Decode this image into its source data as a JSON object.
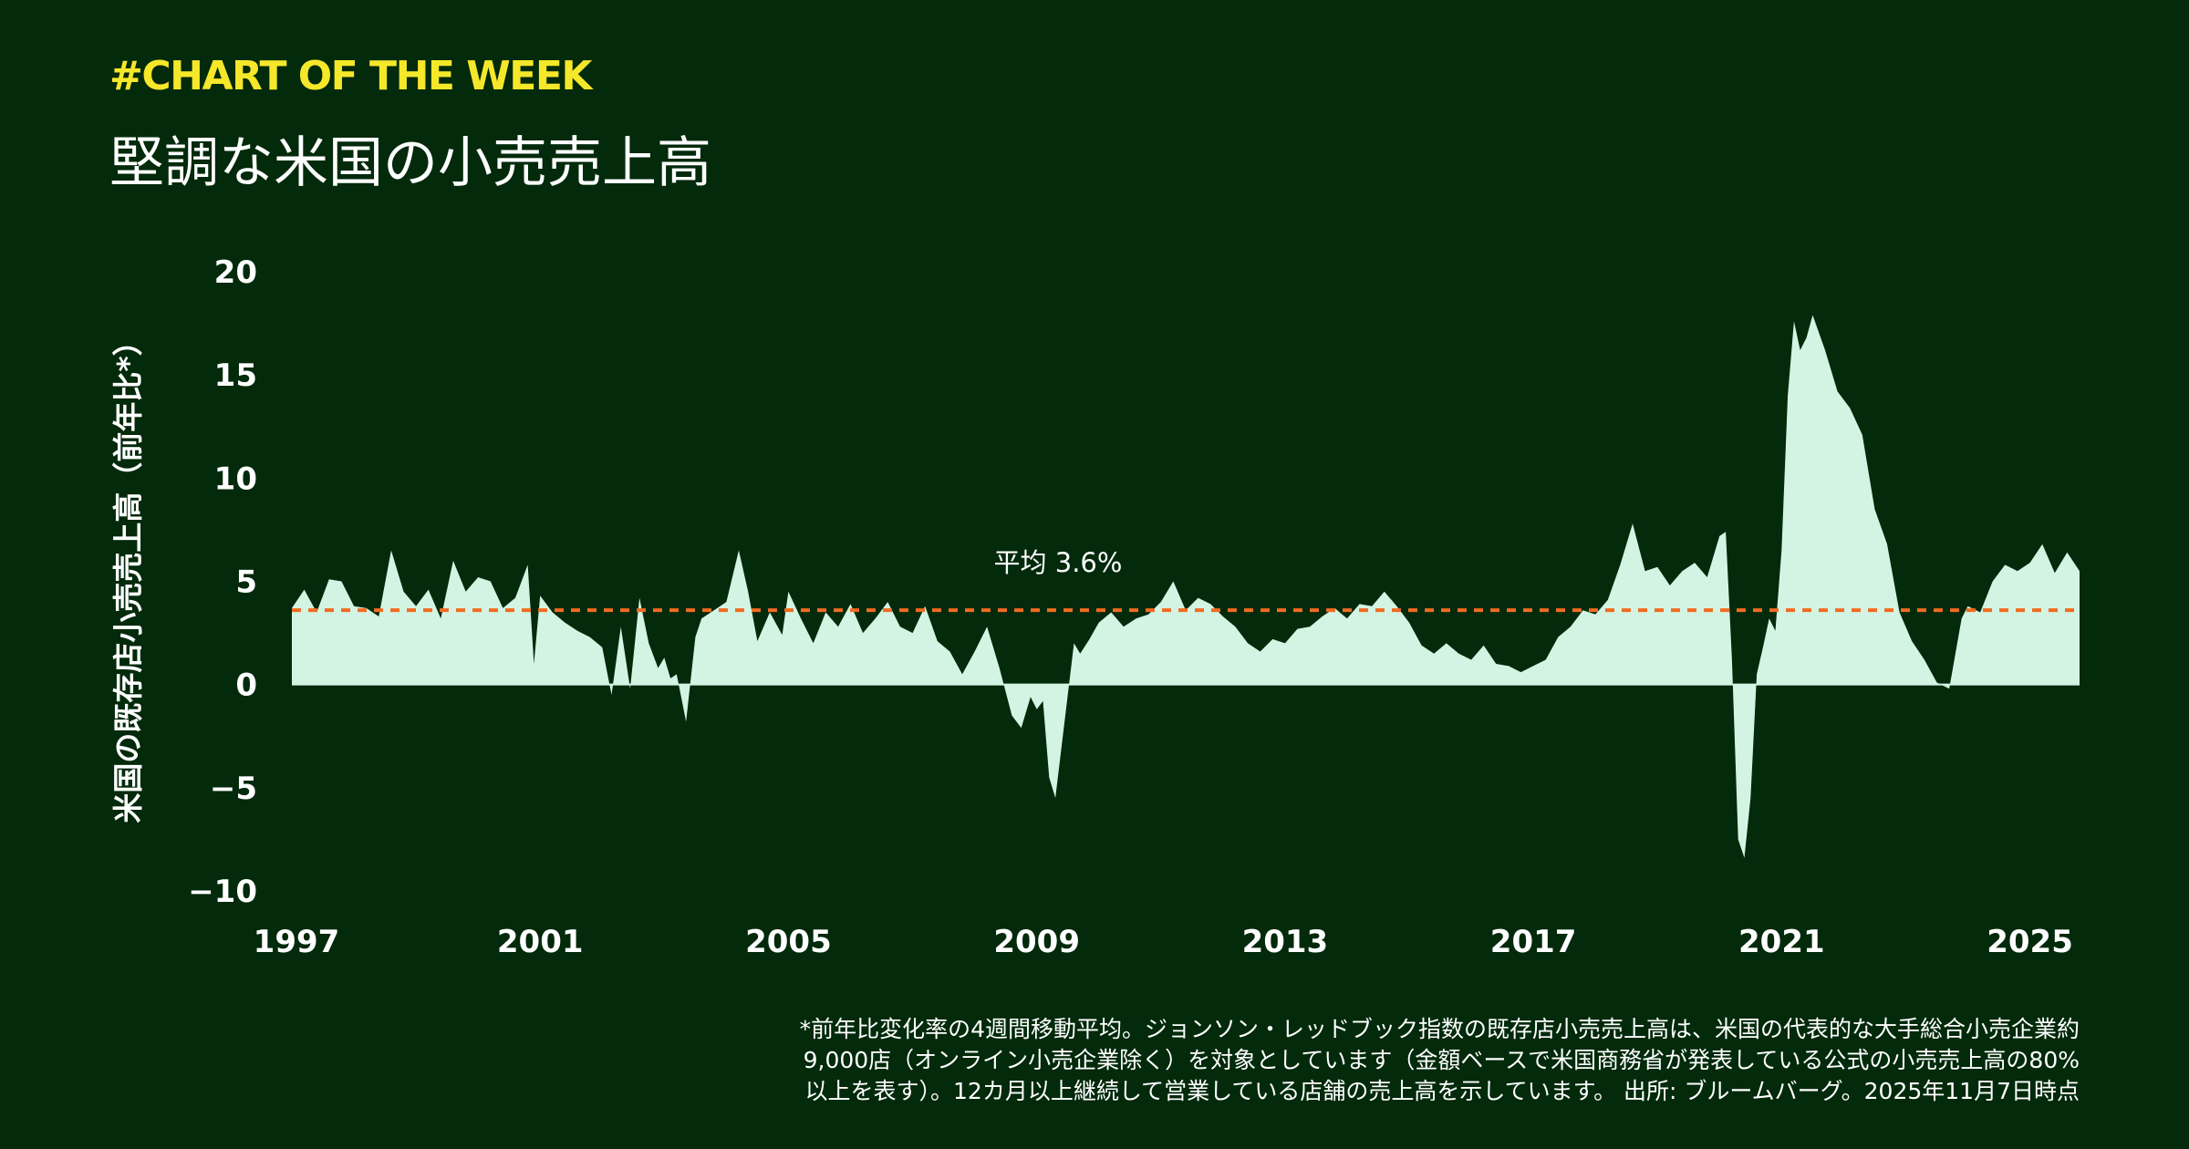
{
  "header": {
    "tag": "#CHART OF THE WEEK",
    "title": "堅調な米国の小売売上高"
  },
  "colors": {
    "background": "#022a0b",
    "area_fill": "#d4f4e3",
    "average_line": "#f26b21",
    "tag": "#f5e72a",
    "text": "#ffffff"
  },
  "footnote": {
    "line1": "*前年比変化率の4週間移動平均。ジョンソン・レッドブック指数の既存店小売売上高は、米国の代表的な大手総合小売企業約",
    "line2": "9,000店（オンライン小売企業除く）を対象としています（金額ベースで米国商務省が発表している公式の小売売上高の80%",
    "line3": "以上を表す）。12カ月以上継続して営業している店舗の売上高を示しています。 出所: ブルームバーグ。2025年11月7日時点"
  },
  "chart_data": {
    "type": "area",
    "title": "堅調な米国の小売売上高",
    "xlabel": "",
    "ylabel": "米国の既存店小売売上高（前年比*）",
    "xlim": [
      1997,
      2025.8
    ],
    "ylim": [
      -10,
      20
    ],
    "yticks": [
      20,
      15,
      10,
      5,
      0,
      -5,
      -10
    ],
    "ytick_labels": [
      "20",
      "15",
      "10",
      "5",
      "0",
      "−5",
      "−10"
    ],
    "xticks": [
      1997,
      2001,
      2005,
      2009,
      2013,
      2017,
      2021,
      2025
    ],
    "xtick_labels": [
      "1997",
      "2001",
      "2005",
      "2009",
      "2013",
      "2017",
      "2021",
      "2025"
    ],
    "grid": false,
    "legend": "none",
    "average": {
      "value": 3.6,
      "label": "平均 3.6%"
    },
    "series": [
      {
        "x": [
          1997.0,
          1997.2,
          1997.4,
          1997.6,
          1997.8,
          1998.0,
          1998.2,
          1998.4,
          1998.6,
          1998.8,
          1999.0,
          1999.2,
          1999.4,
          1999.6,
          1999.8,
          2000.0,
          2000.2,
          2000.4,
          2000.6,
          2000.8,
          2000.9,
          2001.0,
          2001.2,
          2001.4,
          2001.6,
          2001.8,
          2002.0,
          2002.15,
          2002.3,
          2002.45,
          2002.6,
          2002.75,
          2002.9,
          2003.0,
          2003.1,
          2003.2,
          2003.35,
          2003.5,
          2003.6,
          2003.8,
          2004.0,
          2004.2,
          2004.35,
          2004.5,
          2004.7,
          2004.9,
          2005.0,
          2005.2,
          2005.4,
          2005.6,
          2005.8,
          2006.0,
          2006.2,
          2006.4,
          2006.6,
          2006.8,
          2007.0,
          2007.2,
          2007.4,
          2007.6,
          2007.8,
          2008.0,
          2008.2,
          2008.4,
          2008.6,
          2008.75,
          2008.9,
          2009.0,
          2009.1,
          2009.2,
          2009.3,
          2009.4,
          2009.5,
          2009.6,
          2009.7,
          2009.85,
          2010.0,
          2010.2,
          2010.4,
          2010.6,
          2010.8,
          2011.0,
          2011.2,
          2011.4,
          2011.6,
          2011.8,
          2012.0,
          2012.2,
          2012.4,
          2012.6,
          2012.8,
          2013.0,
          2013.2,
          2013.4,
          2013.6,
          2013.8,
          2014.0,
          2014.2,
          2014.4,
          2014.6,
          2014.8,
          2015.0,
          2015.2,
          2015.4,
          2015.6,
          2015.8,
          2016.0,
          2016.2,
          2016.4,
          2016.6,
          2016.8,
          2017.0,
          2017.2,
          2017.4,
          2017.6,
          2017.8,
          2018.0,
          2018.2,
          2018.4,
          2018.6,
          2018.8,
          2019.0,
          2019.2,
          2019.4,
          2019.6,
          2019.8,
          2020.0,
          2020.1,
          2020.2,
          2020.3,
          2020.4,
          2020.5,
          2020.6,
          2020.7,
          2020.8,
          2020.9,
          2021.0,
          2021.1,
          2021.2,
          2021.3,
          2021.4,
          2021.5,
          2021.7,
          2021.9,
          2022.1,
          2022.3,
          2022.5,
          2022.7,
          2022.9,
          2023.1,
          2023.3,
          2023.5,
          2023.7,
          2023.9,
          2024.0,
          2024.2,
          2024.4,
          2024.6,
          2024.8,
          2025.0,
          2025.2,
          2025.4,
          2025.6,
          2025.8
        ],
        "y": [
          3.7,
          4.6,
          3.5,
          5.1,
          5.0,
          3.8,
          3.7,
          3.3,
          6.5,
          4.5,
          3.8,
          4.6,
          3.2,
          6.0,
          4.5,
          5.2,
          5.0,
          3.7,
          4.2,
          5.8,
          1.0,
          4.3,
          3.5,
          3.0,
          2.6,
          2.3,
          1.8,
          -0.5,
          2.8,
          -0.2,
          4.2,
          2.0,
          0.8,
          1.3,
          0.3,
          0.5,
          -1.8,
          2.3,
          3.2,
          3.6,
          4.0,
          6.5,
          4.5,
          2.1,
          3.5,
          2.4,
          4.5,
          3.2,
          2.0,
          3.5,
          2.8,
          3.9,
          2.5,
          3.2,
          4.0,
          2.8,
          2.5,
          3.8,
          2.1,
          1.6,
          0.5,
          1.6,
          2.8,
          0.8,
          -1.5,
          -2.1,
          -0.6,
          -1.2,
          -0.8,
          -4.5,
          -5.5,
          -3.0,
          -0.5,
          2.0,
          1.5,
          2.2,
          3.0,
          3.5,
          2.8,
          3.2,
          3.4,
          4.0,
          5.0,
          3.6,
          4.2,
          3.9,
          3.3,
          2.8,
          2.0,
          1.6,
          2.2,
          2.0,
          2.7,
          2.8,
          3.3,
          3.7,
          3.2,
          3.9,
          3.8,
          4.5,
          3.8,
          3.0,
          1.9,
          1.5,
          2.0,
          1.5,
          1.2,
          1.9,
          1.0,
          0.9,
          0.6,
          0.9,
          1.2,
          2.3,
          2.8,
          3.6,
          3.4,
          4.1,
          5.8,
          7.8,
          5.5,
          5.7,
          4.8,
          5.5,
          5.9,
          5.2,
          7.2,
          7.4,
          1.2,
          -7.5,
          -8.4,
          -5.5,
          0.5,
          1.8,
          3.2,
          2.6,
          6.5,
          14.0,
          17.6,
          16.2,
          16.8,
          17.9,
          16.2,
          14.2,
          13.4,
          12.1,
          8.5,
          6.8,
          3.5,
          2.1,
          1.2,
          0.1,
          -0.2,
          3.2,
          3.8,
          3.5,
          5.0,
          5.8,
          5.5,
          5.9,
          6.8,
          5.4,
          6.4,
          5.5
        ]
      }
    ]
  }
}
